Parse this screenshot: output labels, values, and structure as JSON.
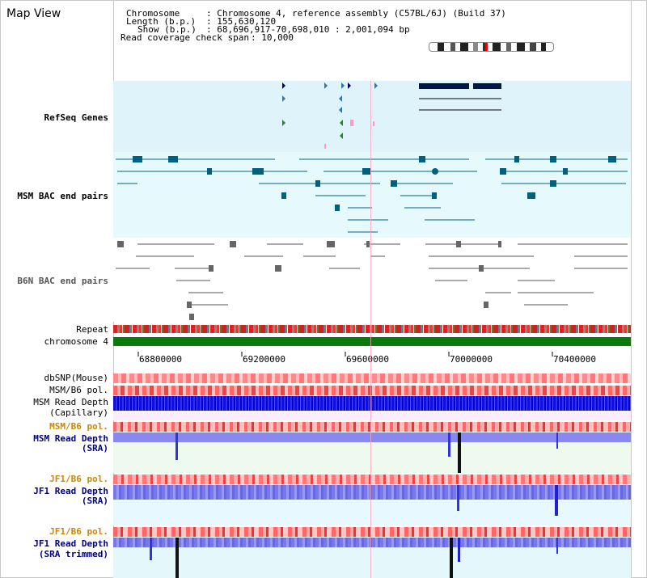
{
  "page": {
    "title": "Map View"
  },
  "header": {
    "chromosome_key": "Chromosome",
    "chromosome_value": ": Chromosome 4, reference assembly (C57BL/6J) (Build 37)",
    "length_key": "Length (b.p.)",
    "length_value": ": 155,630,120",
    "show_key": "Show (b.p.)",
    "show_value": ": 68,696,917-70,698,010 : 2,001,094 bp",
    "coverage_key": "Read coverage check span",
    "coverage_value": ": 10,000"
  },
  "tracks": {
    "refseq": {
      "label": "RefSeq Genes",
      "color": "#000080"
    },
    "msm_bac": {
      "label": "MSM BAC end pairs",
      "color": "#006080"
    },
    "b6n_bac": {
      "label": "B6N BAC end pairs",
      "color": "#555555"
    },
    "repeat": {
      "label": "Repeat"
    },
    "chromosome": {
      "label": "chromosome 4"
    },
    "dbsnp": {
      "label": "dbSNP(Mouse)"
    },
    "msm_b6_pol_1": {
      "label": "MSM/B6 pol."
    },
    "msm_depth_cap": {
      "label": "MSM Read Depth",
      "sub": "(Capillary)"
    },
    "msm_b6_pol_2": {
      "label": "MSM/B6 pol."
    },
    "msm_depth_sra": {
      "label": "MSM Read Depth",
      "sub": "(SRA)"
    },
    "jf1_b6_pol_1": {
      "label": "JF1/B6 pol."
    },
    "jf1_depth_sra": {
      "label": "JF1 Read Depth",
      "sub": "(SRA)"
    },
    "jf1_b6_pol_2": {
      "label": "JF1/B6 pol."
    },
    "jf1_depth_trim": {
      "label": "JF1 Read Depth",
      "sub": "(SRA trimmed)"
    }
  },
  "axis": {
    "ticks": [
      "68800000",
      "69200000",
      "69600000",
      "70000000",
      "70400000"
    ]
  },
  "colors": {
    "accent_orange": "#cc8800",
    "label_blue": "#000080",
    "grid": "#c8c8c8"
  }
}
